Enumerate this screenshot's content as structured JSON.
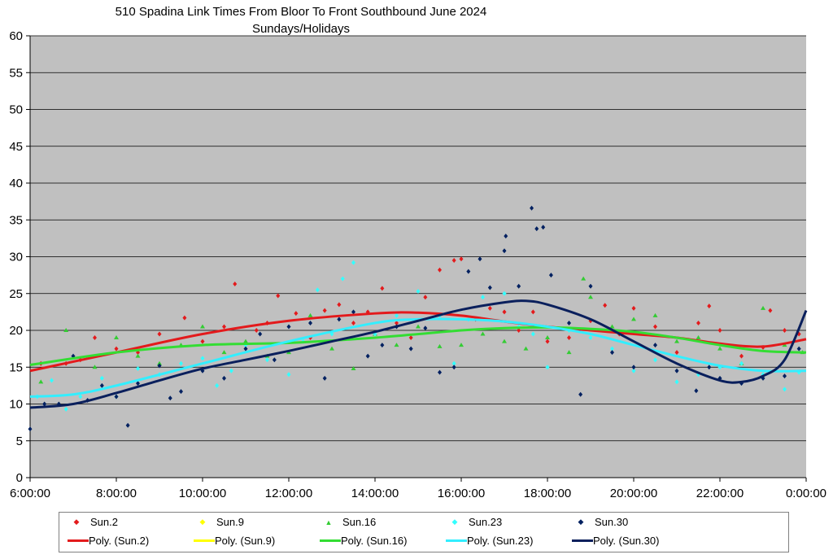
{
  "chart_data": {
    "type": "scatter",
    "title": "510 Spadina Link Times From Bloor To Front Southbound June 2024",
    "subtitle": "Sundays/Holidays",
    "xlabel": "",
    "ylabel": "",
    "xlim": [
      "6:00:00",
      "0:00:00"
    ],
    "ylim": [
      0,
      60
    ],
    "x_ticks": [
      "6:00:00",
      "8:00:00",
      "10:00:00",
      "12:00:00",
      "14:00:00",
      "16:00:00",
      "18:00:00",
      "20:00:00",
      "22:00:00",
      "0:00:00"
    ],
    "y_ticks": [
      "0",
      "5",
      "10",
      "15",
      "20",
      "25",
      "30",
      "35",
      "40",
      "45",
      "50",
      "55",
      "60"
    ],
    "grid": true,
    "legend_position": "bottom",
    "plot_background": "#c0c0c0",
    "series": [
      {
        "name": "Sun.2",
        "color": "#e31a1c",
        "marker": "diamond",
        "points": [
          [
            "6:15",
            15.5
          ],
          [
            "6:50",
            15.5
          ],
          [
            "7:10",
            16
          ],
          [
            "7:30",
            19
          ],
          [
            "8:00",
            17.5
          ],
          [
            "8:30",
            17
          ],
          [
            "9:00",
            19.5
          ],
          [
            "9:35",
            21.7
          ],
          [
            "10:00",
            18.5
          ],
          [
            "10:30",
            20.5
          ],
          [
            "10:45",
            26.3
          ],
          [
            "11:15",
            20
          ],
          [
            "11:30",
            21
          ],
          [
            "11:45",
            24.7
          ],
          [
            "12:10",
            22.3
          ],
          [
            "12:30",
            19
          ],
          [
            "12:50",
            22.7
          ],
          [
            "13:10",
            23.5
          ],
          [
            "13:30",
            21
          ],
          [
            "13:50",
            22.5
          ],
          [
            "14:10",
            25.7
          ],
          [
            "14:30",
            21
          ],
          [
            "14:50",
            19
          ],
          [
            "15:10",
            24.5
          ],
          [
            "15:30",
            28.2
          ],
          [
            "15:50",
            29.5
          ],
          [
            "16:00",
            29.7
          ],
          [
            "16:20",
            21.5
          ],
          [
            "16:40",
            23
          ],
          [
            "17:00",
            22.5
          ],
          [
            "17:20",
            20
          ],
          [
            "17:40",
            22.5
          ],
          [
            "18:00",
            18.5
          ],
          [
            "18:30",
            19
          ],
          [
            "19:00",
            21.3
          ],
          [
            "19:20",
            23.4
          ],
          [
            "19:40",
            19.5
          ],
          [
            "20:00",
            23
          ],
          [
            "20:30",
            20.5
          ],
          [
            "21:00",
            17
          ],
          [
            "21:30",
            21
          ],
          [
            "21:45",
            23.3
          ],
          [
            "22:00",
            20
          ],
          [
            "22:30",
            16.5
          ],
          [
            "23:00",
            17.7
          ],
          [
            "23:10",
            22.7
          ],
          [
            "23:30",
            20
          ],
          [
            "23:50",
            19.5
          ]
        ]
      },
      {
        "name": "Sun.9",
        "color": "#ffff00",
        "marker": "square",
        "points": []
      },
      {
        "name": "Sun.16",
        "color": "#33cc33",
        "marker": "triangle",
        "points": [
          [
            "6:15",
            13
          ],
          [
            "6:50",
            20
          ],
          [
            "7:30",
            15
          ],
          [
            "8:00",
            19
          ],
          [
            "8:30",
            16.5
          ],
          [
            "9:00",
            15.5
          ],
          [
            "9:30",
            18
          ],
          [
            "10:00",
            20.5
          ],
          [
            "10:30",
            17
          ],
          [
            "11:00",
            18.5
          ],
          [
            "11:30",
            16.5
          ],
          [
            "12:00",
            17
          ],
          [
            "12:30",
            22
          ],
          [
            "13:00",
            17.5
          ],
          [
            "13:30",
            14.8
          ],
          [
            "14:00",
            19.5
          ],
          [
            "14:30",
            18
          ],
          [
            "15:00",
            20.5
          ],
          [
            "15:30",
            17.8
          ],
          [
            "16:00",
            18
          ],
          [
            "16:30",
            19.5
          ],
          [
            "17:00",
            18.5
          ],
          [
            "17:30",
            17.5
          ],
          [
            "18:00",
            19
          ],
          [
            "18:30",
            17
          ],
          [
            "18:50",
            27
          ],
          [
            "19:00",
            24.5
          ],
          [
            "19:30",
            20.5
          ],
          [
            "20:00",
            21.5
          ],
          [
            "20:30",
            22
          ],
          [
            "21:00",
            18.5
          ],
          [
            "21:30",
            19
          ],
          [
            "22:00",
            17.5
          ],
          [
            "22:30",
            15.5
          ],
          [
            "23:00",
            23
          ],
          [
            "23:30",
            18
          ],
          [
            "23:55",
            17
          ]
        ]
      },
      {
        "name": "Sun.23",
        "color": "#33ffff",
        "marker": "diamond",
        "points": [
          [
            "6:10",
            11
          ],
          [
            "6:30",
            13.2
          ],
          [
            "6:50",
            9.3
          ],
          [
            "7:10",
            11
          ],
          [
            "7:40",
            13.5
          ],
          [
            "8:00",
            11
          ],
          [
            "8:30",
            14.8
          ],
          [
            "9:00",
            14
          ],
          [
            "9:30",
            15.5
          ],
          [
            "10:00",
            16.2
          ],
          [
            "10:20",
            12.5
          ],
          [
            "10:40",
            14.5
          ],
          [
            "11:00",
            18
          ],
          [
            "11:30",
            16
          ],
          [
            "12:00",
            14
          ],
          [
            "12:20",
            18.5
          ],
          [
            "12:40",
            25.5
          ],
          [
            "13:00",
            19.5
          ],
          [
            "13:15",
            27
          ],
          [
            "13:30",
            29.2
          ],
          [
            "14:00",
            19.5
          ],
          [
            "14:30",
            22
          ],
          [
            "15:00",
            25.3
          ],
          [
            "15:30",
            22
          ],
          [
            "15:50",
            15.5
          ],
          [
            "16:10",
            21.5
          ],
          [
            "16:30",
            24.5
          ],
          [
            "17:00",
            25
          ],
          [
            "17:20",
            20.5
          ],
          [
            "17:40",
            19.5
          ],
          [
            "18:00",
            15
          ],
          [
            "18:30",
            20
          ],
          [
            "19:00",
            19
          ],
          [
            "19:30",
            17.5
          ],
          [
            "20:00",
            14.5
          ],
          [
            "20:30",
            16
          ],
          [
            "21:00",
            13
          ],
          [
            "21:30",
            14
          ],
          [
            "22:00",
            15
          ],
          [
            "22:30",
            15.5
          ],
          [
            "23:00",
            14
          ],
          [
            "23:30",
            12
          ],
          [
            "23:50",
            14.3
          ]
        ]
      },
      {
        "name": "Sun.30",
        "color": "#002060",
        "marker": "diamond",
        "points": [
          [
            "6:00",
            6.6
          ],
          [
            "6:20",
            10
          ],
          [
            "6:40",
            10
          ],
          [
            "7:00",
            16.5
          ],
          [
            "7:20",
            10.5
          ],
          [
            "7:40",
            12.5
          ],
          [
            "8:00",
            11
          ],
          [
            "8:16",
            7.1
          ],
          [
            "8:30",
            12.8
          ],
          [
            "9:00",
            15.2
          ],
          [
            "9:15",
            10.8
          ],
          [
            "9:30",
            11.7
          ],
          [
            "10:00",
            14.5
          ],
          [
            "10:30",
            13.5
          ],
          [
            "11:00",
            17.5
          ],
          [
            "11:20",
            19.5
          ],
          [
            "11:40",
            16
          ],
          [
            "12:00",
            20.5
          ],
          [
            "12:30",
            21
          ],
          [
            "12:50",
            13.5
          ],
          [
            "13:10",
            21.5
          ],
          [
            "13:30",
            22.5
          ],
          [
            "13:50",
            16.5
          ],
          [
            "14:10",
            18
          ],
          [
            "14:30",
            20.5
          ],
          [
            "14:50",
            17.5
          ],
          [
            "15:10",
            20.3
          ],
          [
            "15:30",
            14.3
          ],
          [
            "15:50",
            15
          ],
          [
            "16:10",
            28
          ],
          [
            "16:26",
            29.7
          ],
          [
            "16:40",
            25.8
          ],
          [
            "17:00",
            30.8
          ],
          [
            "17:02",
            32.8
          ],
          [
            "17:20",
            26
          ],
          [
            "17:38",
            36.6
          ],
          [
            "17:45",
            33.8
          ],
          [
            "17:54",
            34
          ],
          [
            "18:05",
            27.5
          ],
          [
            "18:30",
            21
          ],
          [
            "18:46",
            11.3
          ],
          [
            "19:00",
            26
          ],
          [
            "19:30",
            17
          ],
          [
            "20:00",
            15
          ],
          [
            "20:30",
            18
          ],
          [
            "21:00",
            14.5
          ],
          [
            "21:27",
            11.8
          ],
          [
            "21:45",
            15
          ],
          [
            "22:00",
            13.5
          ],
          [
            "22:30",
            12.8
          ],
          [
            "23:00",
            13.5
          ],
          [
            "23:30",
            13.8
          ],
          [
            "23:50",
            17.5
          ]
        ]
      }
    ],
    "trendlines": [
      {
        "name": "Poly. (Sun.2)",
        "color": "#e31a1c",
        "x_hours": [
          6,
          8,
          10,
          12,
          14,
          15,
          16,
          17,
          18,
          19,
          20,
          21,
          22,
          23,
          24
        ],
        "values": [
          14.5,
          17,
          19.5,
          21.3,
          22.3,
          22.4,
          22,
          21.2,
          20.5,
          20,
          19.5,
          19,
          18.2,
          17.8,
          18.8
        ]
      },
      {
        "name": "Poly. (Sun.9)",
        "color": "#ffff00",
        "x_hours": [],
        "values": []
      },
      {
        "name": "Poly. (Sun.16)",
        "color": "#33dd33",
        "x_hours": [
          6,
          8,
          10,
          12,
          14,
          16,
          17,
          18,
          19,
          20,
          21,
          22,
          23,
          24
        ],
        "values": [
          15.3,
          17,
          18,
          18.3,
          19,
          20,
          20.3,
          20.4,
          20.2,
          19.8,
          19,
          18,
          17.2,
          17
        ]
      },
      {
        "name": "Poly. (Sun.23)",
        "color": "#33eeff",
        "x_hours": [
          6,
          7,
          8,
          10,
          12,
          14,
          15,
          16,
          17,
          18,
          19,
          20,
          21,
          22,
          23,
          24
        ],
        "values": [
          11,
          11.3,
          12.5,
          15.5,
          18.5,
          21,
          21.5,
          21.5,
          21.2,
          20.5,
          19.5,
          18,
          16.5,
          15.2,
          14.5,
          14.5
        ]
      },
      {
        "name": "Poly. (Sun.30)",
        "color": "#0a1f5c",
        "x_hours": [
          6,
          7,
          8,
          9,
          10,
          11,
          12,
          13,
          14,
          15,
          16,
          17,
          17.5,
          18,
          19,
          20,
          21,
          22,
          22.5,
          23,
          23.5,
          24
        ],
        "values": [
          9.5,
          10,
          11.5,
          13.2,
          14.8,
          16,
          17.2,
          18.5,
          19.8,
          21.3,
          22.8,
          23.8,
          24,
          23.5,
          21.5,
          18.5,
          15.5,
          13.2,
          13,
          13.8,
          16,
          22.7
        ]
      }
    ]
  },
  "legend": {
    "markers": [
      "Sun.2",
      "Sun.9",
      "Sun.16",
      "Sun.23",
      "Sun.30"
    ],
    "lines": [
      "Poly. (Sun.2)",
      "Poly. (Sun.9)",
      "Poly. (Sun.16)",
      "Poly. (Sun.23)",
      "Poly. (Sun.30)"
    ]
  }
}
